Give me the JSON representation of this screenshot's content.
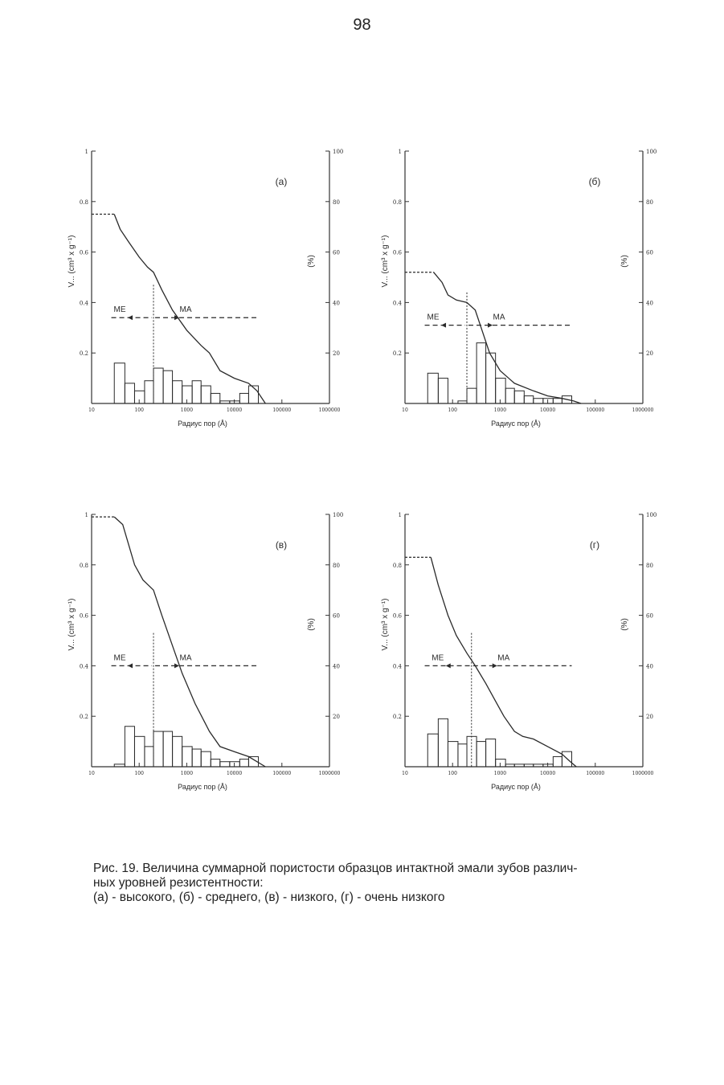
{
  "page_number": "98",
  "caption": {
    "line1": "Рис. 19. Величина суммарной пористости образцов интактной эмали зубов различ-",
    "line2": "ных уровней резистентности:",
    "line3": "(а) - высокого, (б) - среднего, (в) - низкого, (г) - очень низкого"
  },
  "colors": {
    "ink": "#2a2a2a",
    "axis": "#333333"
  },
  "chart_data": [
    {
      "id": "a",
      "type": "bar+line",
      "panel_label": "(а)",
      "xlabel": "Радиус пор (Å)",
      "ylabel_left": "V... (cm³ x g⁻¹)",
      "ylabel_right": "(%)",
      "x_scale": "log",
      "xlim": [
        10,
        1000000
      ],
      "x_ticks": [
        "10",
        "100",
        "1000",
        "10000",
        "100000",
        "1000000"
      ],
      "ylim_left": [
        0,
        1
      ],
      "y_ticks_left": [
        "0.2",
        "0.4",
        "0.6",
        "0.8",
        "1"
      ],
      "ylim_right": [
        0,
        100
      ],
      "y_ticks_right": [
        "20",
        "40",
        "60",
        "80",
        "100"
      ],
      "divider_x": 200,
      "arrows": {
        "left_label": "ME",
        "right_label": "MA",
        "y": 0.34
      },
      "dashed_start": {
        "x_from": 10,
        "x_to": 30,
        "y": 0.75
      },
      "cumulative_curve": [
        [
          30,
          0.75
        ],
        [
          40,
          0.69
        ],
        [
          60,
          0.64
        ],
        [
          100,
          0.58
        ],
        [
          150,
          0.54
        ],
        [
          200,
          0.52
        ],
        [
          300,
          0.45
        ],
        [
          500,
          0.37
        ],
        [
          1000,
          0.29
        ],
        [
          2000,
          0.23
        ],
        [
          3000,
          0.2
        ],
        [
          5000,
          0.13
        ],
        [
          10000,
          0.1
        ],
        [
          20000,
          0.08
        ],
        [
          30000,
          0.05
        ],
        [
          45000,
          0.0
        ]
      ],
      "histogram": [
        [
          30,
          50,
          0.16
        ],
        [
          50,
          80,
          0.08
        ],
        [
          80,
          130,
          0.05
        ],
        [
          130,
          200,
          0.09
        ],
        [
          200,
          320,
          0.14
        ],
        [
          320,
          500,
          0.13
        ],
        [
          500,
          800,
          0.09
        ],
        [
          800,
          1300,
          0.07
        ],
        [
          1300,
          2000,
          0.09
        ],
        [
          2000,
          3200,
          0.07
        ],
        [
          3200,
          5000,
          0.04
        ],
        [
          5000,
          8000,
          0.01
        ],
        [
          8000,
          13000,
          0.01
        ],
        [
          13000,
          20000,
          0.04
        ],
        [
          20000,
          32000,
          0.07
        ]
      ]
    },
    {
      "id": "b",
      "type": "bar+line",
      "panel_label": "(б)",
      "xlabel": "Радиус пор (Å)",
      "ylabel_left": "V... (cm³ x g⁻¹)",
      "ylabel_right": "(%)",
      "x_scale": "log",
      "xlim": [
        10,
        1000000
      ],
      "x_ticks": [
        "10",
        "100",
        "1000",
        "10000",
        "100000",
        "1000000"
      ],
      "ylim_left": [
        0,
        1
      ],
      "y_ticks_left": [
        "0.2",
        "0.4",
        "0.6",
        "0.8",
        "1"
      ],
      "ylim_right": [
        0,
        100
      ],
      "y_ticks_right": [
        "20",
        "40",
        "60",
        "80",
        "100"
      ],
      "divider_x": 200,
      "arrows": {
        "left_label": "ME",
        "right_label": "MA",
        "y": 0.31
      },
      "dashed_start": {
        "x_from": 10,
        "x_to": 40,
        "y": 0.52
      },
      "cumulative_curve": [
        [
          40,
          0.52
        ],
        [
          60,
          0.48
        ],
        [
          80,
          0.43
        ],
        [
          120,
          0.41
        ],
        [
          200,
          0.4
        ],
        [
          300,
          0.37
        ],
        [
          400,
          0.3
        ],
        [
          600,
          0.2
        ],
        [
          1000,
          0.13
        ],
        [
          2000,
          0.08
        ],
        [
          5000,
          0.05
        ],
        [
          10000,
          0.03
        ],
        [
          20000,
          0.02
        ],
        [
          35000,
          0.01
        ],
        [
          50000,
          0.0
        ]
      ],
      "histogram": [
        [
          30,
          50,
          0.12
        ],
        [
          50,
          80,
          0.1
        ],
        [
          80,
          130,
          0.0
        ],
        [
          130,
          200,
          0.01
        ],
        [
          200,
          320,
          0.06
        ],
        [
          320,
          500,
          0.24
        ],
        [
          500,
          800,
          0.2
        ],
        [
          800,
          1300,
          0.1
        ],
        [
          1300,
          2000,
          0.06
        ],
        [
          2000,
          3200,
          0.05
        ],
        [
          3200,
          5000,
          0.03
        ],
        [
          5000,
          8000,
          0.02
        ],
        [
          8000,
          13000,
          0.02
        ],
        [
          13000,
          20000,
          0.02
        ],
        [
          20000,
          32000,
          0.03
        ]
      ]
    },
    {
      "id": "c",
      "type": "bar+line",
      "panel_label": "(в)",
      "xlabel": "Радиус пор (Å)",
      "ylabel_left": "V... (cm³ x g⁻¹)",
      "ylabel_right": "(%)",
      "x_scale": "log",
      "xlim": [
        10,
        1000000
      ],
      "x_ticks": [
        "10",
        "100",
        "1000",
        "10000",
        "100000",
        "1000000"
      ],
      "ylim_left": [
        0,
        1
      ],
      "y_ticks_left": [
        "0.2",
        "0.4",
        "0.6",
        "0.8",
        "1"
      ],
      "ylim_right": [
        0,
        100
      ],
      "y_ticks_right": [
        "20",
        "40",
        "60",
        "80",
        "100"
      ],
      "divider_x": 200,
      "arrows": {
        "left_label": "ME",
        "right_label": "MA",
        "y": 0.4
      },
      "dashed_start": {
        "x_from": 10,
        "x_to": 30,
        "y": 0.99
      },
      "cumulative_curve": [
        [
          30,
          0.99
        ],
        [
          45,
          0.96
        ],
        [
          60,
          0.88
        ],
        [
          80,
          0.8
        ],
        [
          120,
          0.74
        ],
        [
          200,
          0.7
        ],
        [
          300,
          0.6
        ],
        [
          500,
          0.48
        ],
        [
          800,
          0.37
        ],
        [
          1500,
          0.25
        ],
        [
          3000,
          0.14
        ],
        [
          5000,
          0.08
        ],
        [
          10000,
          0.06
        ],
        [
          20000,
          0.04
        ],
        [
          30000,
          0.02
        ],
        [
          45000,
          0.0
        ]
      ],
      "histogram": [
        [
          30,
          50,
          0.01
        ],
        [
          50,
          80,
          0.16
        ],
        [
          80,
          130,
          0.12
        ],
        [
          130,
          200,
          0.08
        ],
        [
          200,
          320,
          0.14
        ],
        [
          320,
          500,
          0.14
        ],
        [
          500,
          800,
          0.12
        ],
        [
          800,
          1300,
          0.08
        ],
        [
          1300,
          2000,
          0.07
        ],
        [
          2000,
          3200,
          0.06
        ],
        [
          3200,
          5000,
          0.03
        ],
        [
          5000,
          8000,
          0.02
        ],
        [
          8000,
          13000,
          0.02
        ],
        [
          13000,
          20000,
          0.03
        ],
        [
          20000,
          32000,
          0.04
        ]
      ]
    },
    {
      "id": "d",
      "type": "bar+line",
      "panel_label": "(г)",
      "xlabel": "Радиус пор (Å)",
      "ylabel_left": "V... (cm³ x g⁻¹)",
      "ylabel_right": "(%)",
      "x_scale": "log",
      "xlim": [
        10,
        1000000
      ],
      "x_ticks": [
        "10",
        "100",
        "1000",
        "10000",
        "100000",
        "1000000"
      ],
      "ylim_left": [
        0,
        1
      ],
      "y_ticks_left": [
        "0.2",
        "0.4",
        "0.6",
        "0.8",
        "1"
      ],
      "ylim_right": [
        0,
        100
      ],
      "y_ticks_right": [
        "20",
        "40",
        "60",
        "80",
        "100"
      ],
      "divider_x": 250,
      "arrows": {
        "left_label": "ME",
        "right_label": "MA",
        "y": 0.4
      },
      "dashed_start": {
        "x_from": 10,
        "x_to": 35,
        "y": 0.83
      },
      "cumulative_curve": [
        [
          35,
          0.83
        ],
        [
          50,
          0.72
        ],
        [
          80,
          0.6
        ],
        [
          120,
          0.52
        ],
        [
          200,
          0.45
        ],
        [
          300,
          0.4
        ],
        [
          500,
          0.33
        ],
        [
          800,
          0.26
        ],
        [
          1200,
          0.2
        ],
        [
          2000,
          0.14
        ],
        [
          3000,
          0.12
        ],
        [
          5000,
          0.11
        ],
        [
          10000,
          0.08
        ],
        [
          20000,
          0.05
        ],
        [
          30000,
          0.02
        ],
        [
          40000,
          0.0
        ]
      ],
      "histogram": [
        [
          30,
          50,
          0.13
        ],
        [
          50,
          80,
          0.19
        ],
        [
          80,
          130,
          0.1
        ],
        [
          130,
          200,
          0.09
        ],
        [
          200,
          320,
          0.12
        ],
        [
          320,
          500,
          0.1
        ],
        [
          500,
          800,
          0.11
        ],
        [
          800,
          1300,
          0.03
        ],
        [
          1300,
          2000,
          0.01
        ],
        [
          2000,
          3200,
          0.01
        ],
        [
          3200,
          5000,
          0.01
        ],
        [
          5000,
          8000,
          0.01
        ],
        [
          8000,
          13000,
          0.01
        ],
        [
          13000,
          20000,
          0.04
        ],
        [
          20000,
          32000,
          0.06
        ]
      ]
    }
  ]
}
